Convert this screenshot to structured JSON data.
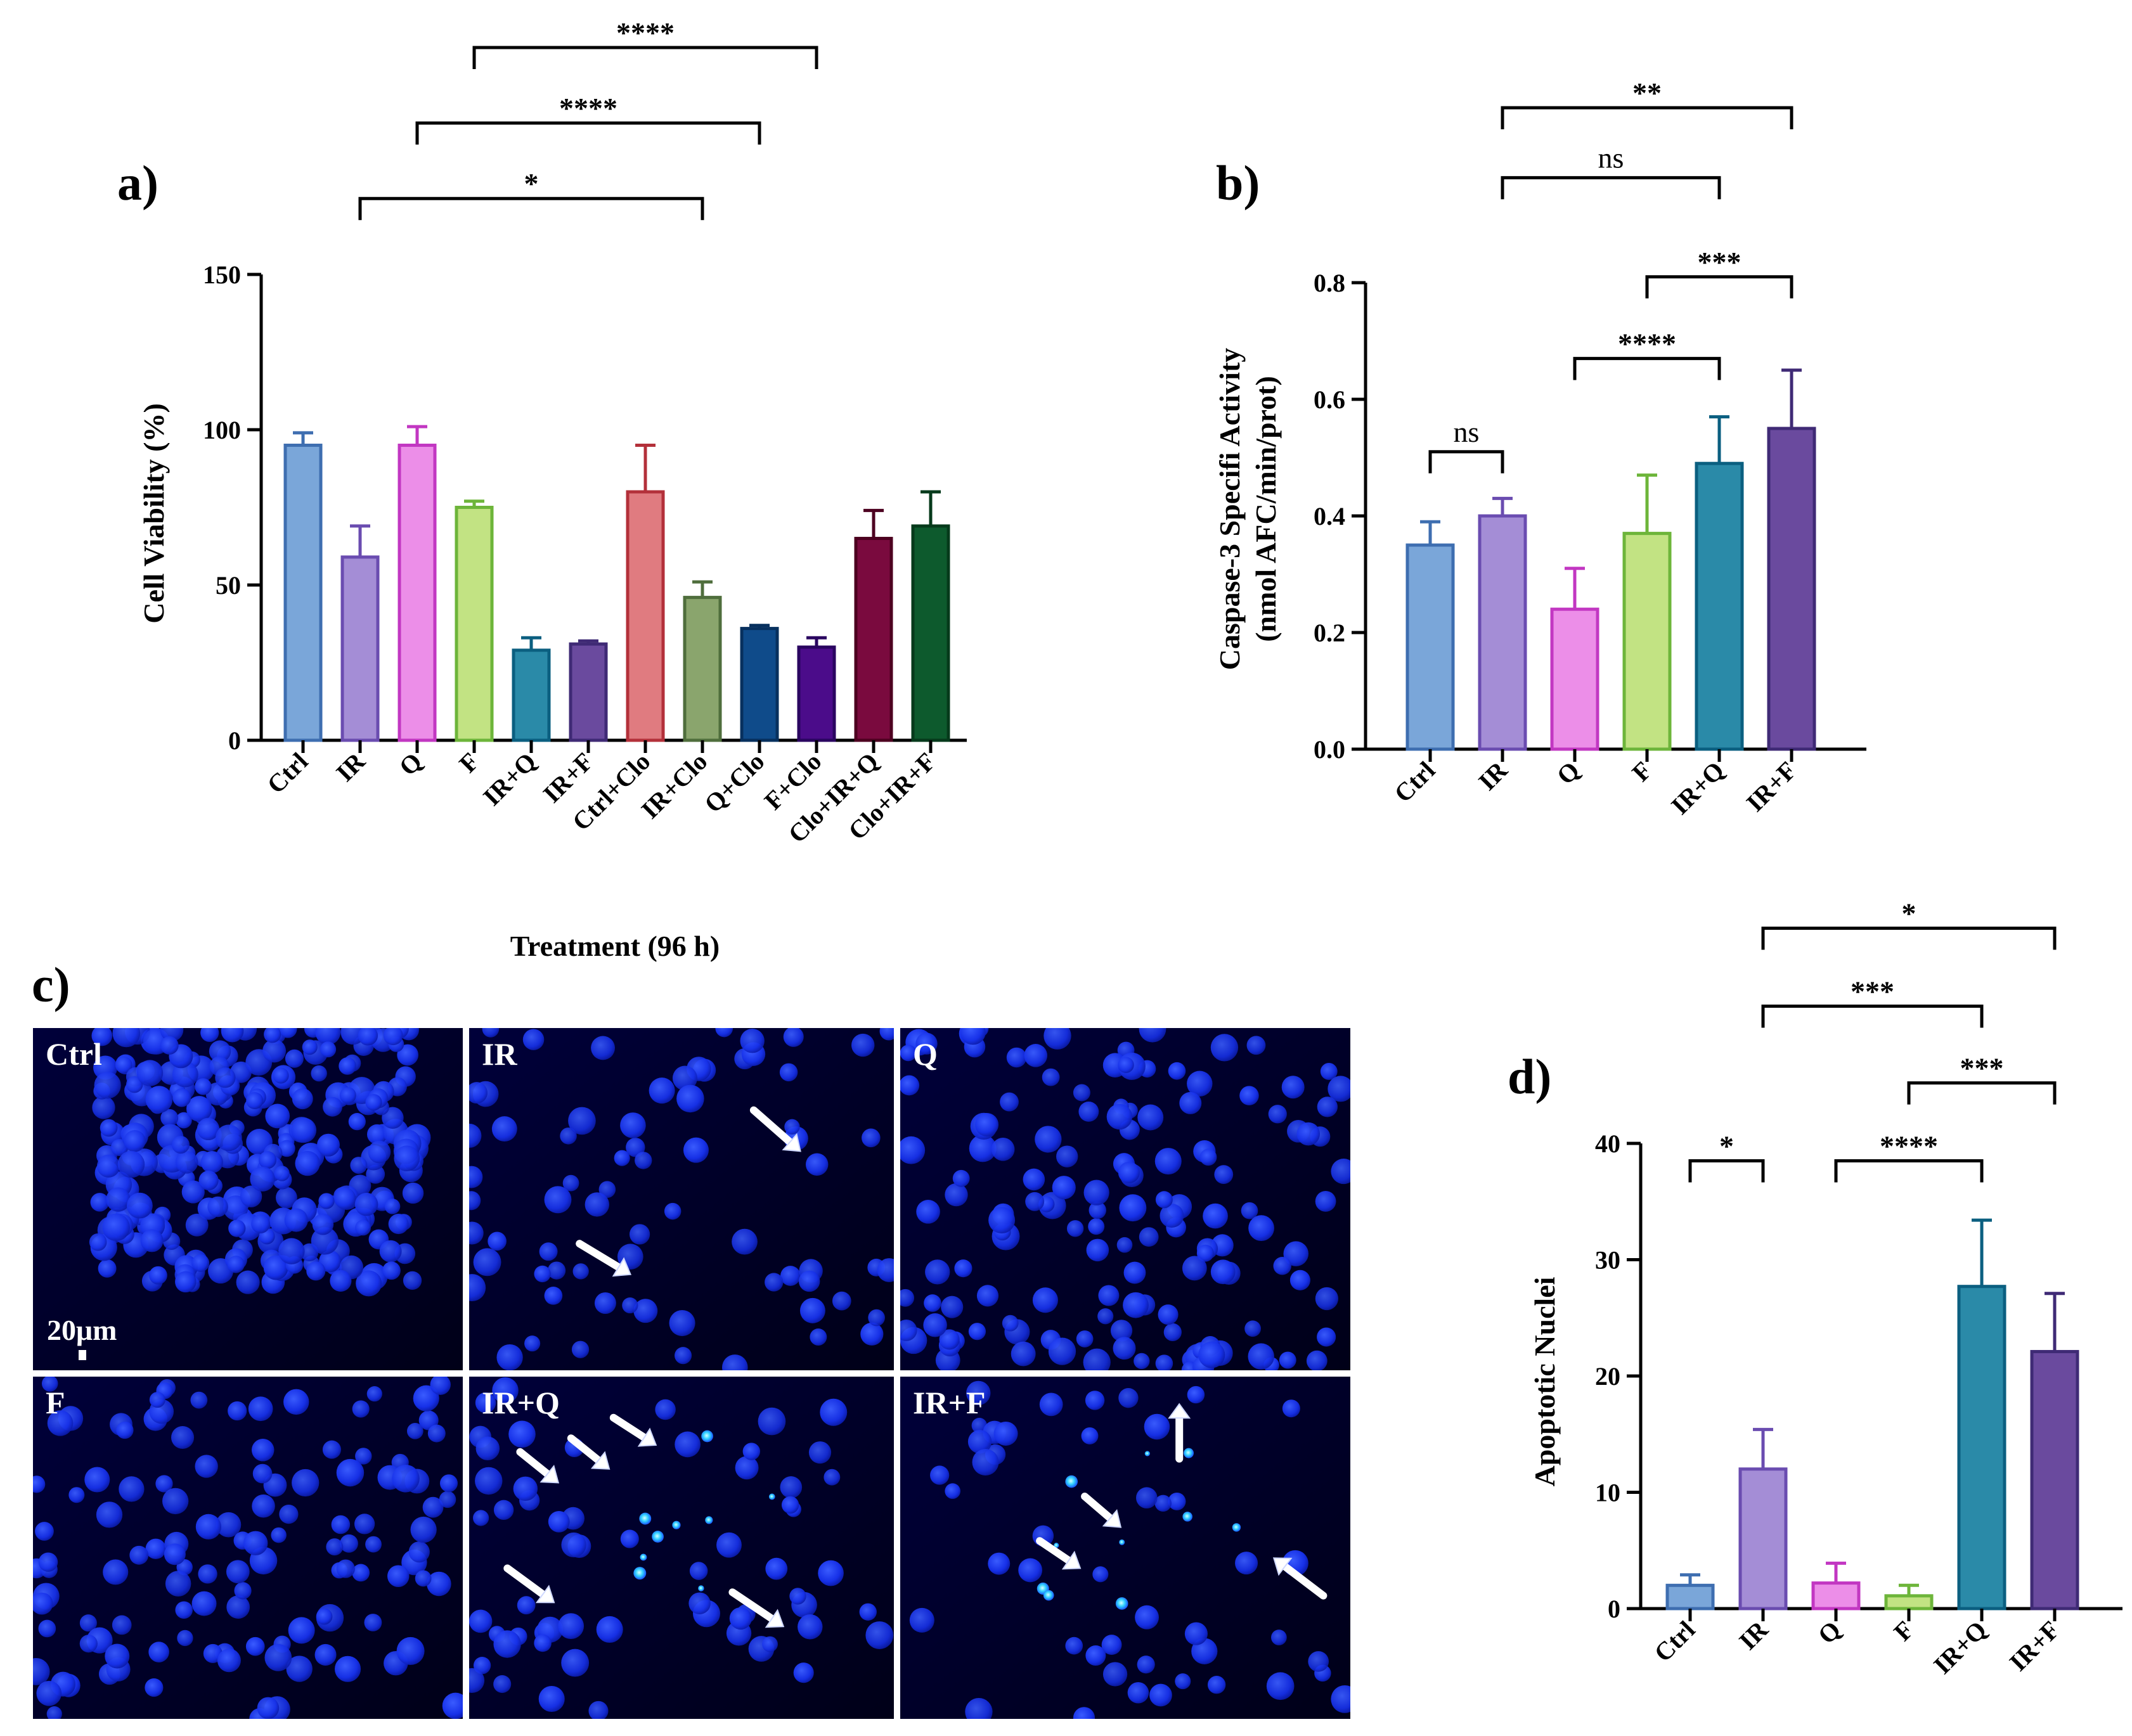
{
  "panels": {
    "a": "a)",
    "b": "b)",
    "c": "c)",
    "d": "d)"
  },
  "chart_data": [
    {
      "id": "a",
      "type": "bar",
      "categories": [
        "Ctrl",
        "IR",
        "Q",
        "F",
        "IR+Q",
        "IR+F",
        "Ctrl+Clo",
        "IR+Clo",
        "Q+Clo",
        "F+Clo",
        "Clo+IR+Q",
        "Clo+IR+F"
      ],
      "values": [
        95,
        59,
        95,
        75,
        29,
        31,
        80,
        46,
        36,
        30,
        65,
        69
      ],
      "errors": [
        4,
        10,
        6,
        2,
        4,
        1,
        15,
        5,
        1,
        3,
        9,
        11
      ],
      "fill_colors": [
        "#7aa6d9",
        "#a48dd6",
        "#ec8ee8",
        "#c2e383",
        "#2a8aa8",
        "#6a4a9e",
        "#e07b80",
        "#8aa56d",
        "#0f4b8a",
        "#4b0c8a",
        "#7a0a3e",
        "#0d5a2d"
      ],
      "edge_colors": [
        "#3e6eb0",
        "#6a4cb0",
        "#c237c2",
        "#6db53a",
        "#0b5f80",
        "#3f2a75",
        "#b3303a",
        "#4f6e3c",
        "#07305e",
        "#2a0560",
        "#4d0020",
        "#063a1b"
      ],
      "ylabel": "Cell Viability (%)",
      "xlabel": "Treatment (96 h)",
      "ylim": [
        0,
        150
      ],
      "yticks": [
        "0",
        "50",
        "100",
        "150"
      ],
      "significance": [
        {
          "from": 1,
          "to": 7,
          "label": "*"
        },
        {
          "from": 2,
          "to": 8,
          "label": "****"
        },
        {
          "from": 3,
          "to": 9,
          "label": "****"
        },
        {
          "from": 4,
          "to": 10,
          "label": "****"
        },
        {
          "from": 5,
          "to": 11,
          "label": "****"
        }
      ]
    },
    {
      "id": "b",
      "type": "bar",
      "categories": [
        "Ctrl",
        "IR",
        "Q",
        "F",
        "IR+Q",
        "IR+F"
      ],
      "values": [
        0.35,
        0.4,
        0.24,
        0.37,
        0.49,
        0.55
      ],
      "errors": [
        0.04,
        0.03,
        0.07,
        0.1,
        0.08,
        0.1
      ],
      "fill_colors": [
        "#7aa6d9",
        "#a48dd6",
        "#ec8ee8",
        "#c2e383",
        "#2a8aa8",
        "#6a4a9e"
      ],
      "edge_colors": [
        "#3e6eb0",
        "#6a4cb0",
        "#c237c2",
        "#6db53a",
        "#0b5f80",
        "#3f2a75"
      ],
      "ylabel_lines": [
        "Caspase-3 Specifi Activity",
        "(nmol  AFC/min/prot)"
      ],
      "ylim": [
        0,
        0.8
      ],
      "yticks": [
        "0.0",
        "0.2",
        "0.4",
        "0.6",
        "0.8"
      ],
      "significance": [
        {
          "from": 0,
          "to": 1,
          "label": "ns",
          "y": 0.51
        },
        {
          "from": 2,
          "to": 4,
          "label": "****",
          "y": 0.67
        },
        {
          "from": 3,
          "to": 5,
          "label": "***",
          "y": 0.81
        },
        {
          "from": 1,
          "to": 4,
          "label": "ns",
          "y": 0.98
        },
        {
          "from": 1,
          "to": 5,
          "label": "**",
          "y": 1.1
        }
      ]
    },
    {
      "id": "d",
      "type": "bar",
      "categories": [
        "Ctrl",
        "IR",
        "Q",
        "F",
        "IR+Q",
        "IR+F"
      ],
      "values": [
        2,
        12,
        2.2,
        1.1,
        27.7,
        22.1
      ],
      "errors": [
        0.9,
        3.4,
        1.7,
        0.9,
        5.7,
        5.0
      ],
      "fill_colors": [
        "#7aa6d9",
        "#a48dd6",
        "#ec8ee8",
        "#c2e383",
        "#2a8aa8",
        "#6a4a9e"
      ],
      "edge_colors": [
        "#3e6eb0",
        "#6a4cb0",
        "#c237c2",
        "#6db53a",
        "#0b5f80",
        "#3f2a75"
      ],
      "ylabel": "Apoptotic Nuclei",
      "ylim": [
        0,
        40
      ],
      "yticks": [
        "0",
        "10",
        "20",
        "30",
        "40"
      ],
      "significance": [
        {
          "from": 0,
          "to": 1,
          "label": "*",
          "y": 38.5
        },
        {
          "from": 2,
          "to": 4,
          "label": "****",
          "y": 38.5
        },
        {
          "from": 3,
          "to": 5,
          "label": "***",
          "y": 45.2
        },
        {
          "from": 1,
          "to": 4,
          "label": "***",
          "y": 51.8
        },
        {
          "from": 1,
          "to": 5,
          "label": "*",
          "y": 58.5
        }
      ]
    }
  ],
  "micrographs": {
    "panels": [
      {
        "label": "Ctrl",
        "scale_bar": "20μm"
      },
      {
        "label": "IR"
      },
      {
        "label": "Q"
      },
      {
        "label": "F"
      },
      {
        "label": "IR+Q"
      },
      {
        "label": "IR+F"
      }
    ]
  }
}
